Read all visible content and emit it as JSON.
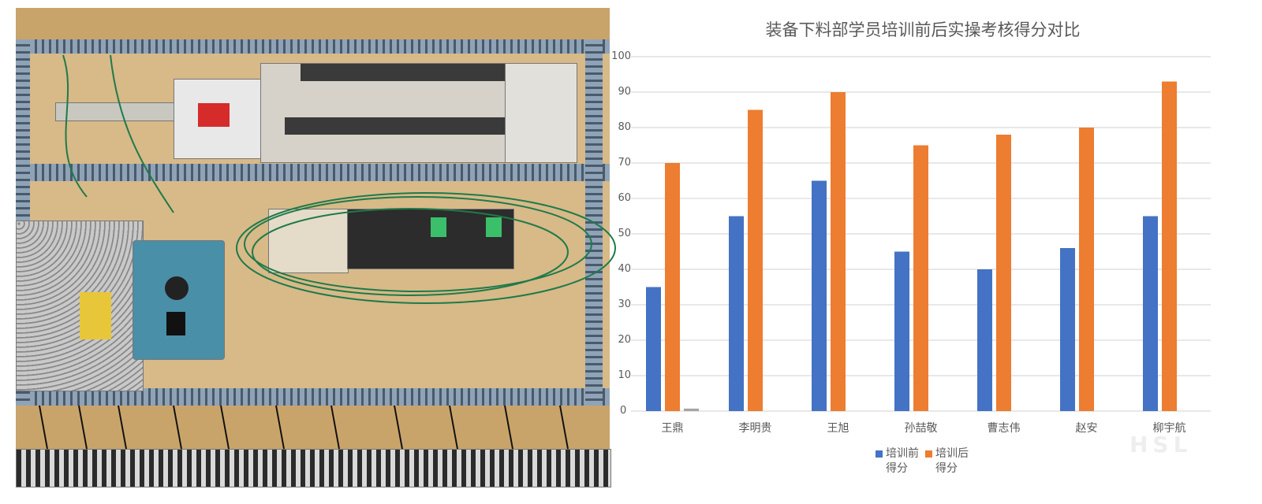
{
  "photo": {
    "description_icon": "electrical-control-panel-photo"
  },
  "chart_data": {
    "type": "bar",
    "title": "装备下料部学员培训前后实操考核得分对比",
    "categories": [
      "王鼎",
      "李明贵",
      "王旭",
      "孙喆敬",
      "曹志伟",
      "赵安",
      "柳宇航"
    ],
    "series": [
      {
        "name": "培训前得分",
        "values": [
          35,
          55,
          65,
          45,
          40,
          46,
          55
        ],
        "color": "#4472c4"
      },
      {
        "name": "培训后得分",
        "values": [
          70,
          85,
          90,
          75,
          78,
          80,
          93
        ],
        "color": "#ed7d31"
      },
      {
        "name": "",
        "values": [
          0.7,
          0,
          0,
          0,
          0,
          0,
          0
        ],
        "color": "#a5a5a5"
      }
    ],
    "yticks": [
      "0",
      "10",
      "20",
      "30",
      "40",
      "50",
      "60",
      "70",
      "80",
      "90",
      "100"
    ],
    "ylim": [
      0,
      100
    ],
    "grid": true,
    "legend": "bottom"
  },
  "legend": {
    "items": [
      {
        "line1": "培训前",
        "line2": "得分"
      },
      {
        "line1": "培训后",
        "line2": "得分"
      }
    ]
  },
  "watermark": {
    "text": "HSL"
  }
}
